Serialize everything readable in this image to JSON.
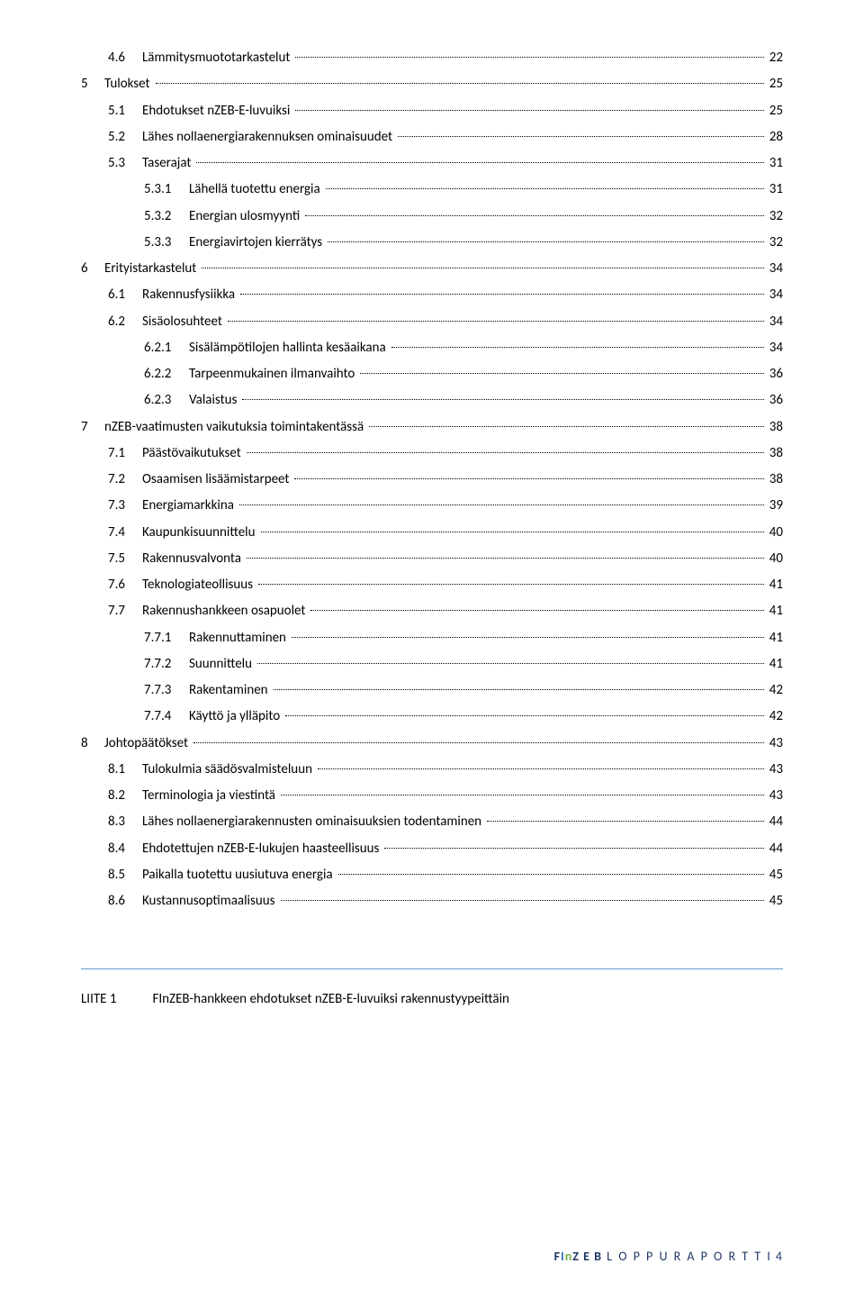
{
  "toc": [
    {
      "lvl": 2,
      "num": "4.6",
      "title": "Lämmitysmuototarkastelut",
      "page": "22"
    },
    {
      "lvl": 1,
      "num": "5",
      "title": "Tulokset",
      "page": "25"
    },
    {
      "lvl": 2,
      "num": "5.1",
      "title": "Ehdotukset nZEB-E-luvuiksi",
      "page": "25"
    },
    {
      "lvl": 2,
      "num": "5.2",
      "title": "Lähes nollaenergiarakennuksen ominaisuudet",
      "page": "28"
    },
    {
      "lvl": 2,
      "num": "5.3",
      "title": "Taserajat",
      "page": "31"
    },
    {
      "lvl": 3,
      "num": "5.3.1",
      "title": "Lähellä tuotettu energia",
      "page": "31"
    },
    {
      "lvl": 3,
      "num": "5.3.2",
      "title": "Energian ulosmyynti",
      "page": "32"
    },
    {
      "lvl": 3,
      "num": "5.3.3",
      "title": "Energiavirtojen kierrätys",
      "page": "32"
    },
    {
      "lvl": 1,
      "num": "6",
      "title": "Erityistarkastelut",
      "page": "34"
    },
    {
      "lvl": 2,
      "num": "6.1",
      "title": "Rakennusfysiikka",
      "page": "34"
    },
    {
      "lvl": 2,
      "num": "6.2",
      "title": "Sisäolosuhteet",
      "page": "34"
    },
    {
      "lvl": 3,
      "num": "6.2.1",
      "title": "Sisälämpötilojen hallinta kesäaikana",
      "page": "34"
    },
    {
      "lvl": 3,
      "num": "6.2.2",
      "title": "Tarpeenmukainen ilmanvaihto",
      "page": "36"
    },
    {
      "lvl": 3,
      "num": "6.2.3",
      "title": "Valaistus",
      "page": "36"
    },
    {
      "lvl": 1,
      "num": "7",
      "title": "nZEB-vaatimusten vaikutuksia toimintakentässä",
      "page": "38"
    },
    {
      "lvl": 2,
      "num": "7.1",
      "title": "Päästövaikutukset",
      "page": "38"
    },
    {
      "lvl": 2,
      "num": "7.2",
      "title": "Osaamisen lisäämistarpeet",
      "page": "38"
    },
    {
      "lvl": 2,
      "num": "7.3",
      "title": "Energiamarkkina",
      "page": "39"
    },
    {
      "lvl": 2,
      "num": "7.4",
      "title": "Kaupunkisuunnittelu",
      "page": "40"
    },
    {
      "lvl": 2,
      "num": "7.5",
      "title": "Rakennusvalvonta",
      "page": "40"
    },
    {
      "lvl": 2,
      "num": "7.6",
      "title": "Teknologiateollisuus",
      "page": "41"
    },
    {
      "lvl": 2,
      "num": "7.7",
      "title": "Rakennushankkeen osapuolet",
      "page": "41"
    },
    {
      "lvl": 3,
      "num": "7.7.1",
      "title": "Rakennuttaminen",
      "page": "41"
    },
    {
      "lvl": 3,
      "num": "7.7.2",
      "title": "Suunnittelu",
      "page": "41"
    },
    {
      "lvl": 3,
      "num": "7.7.3",
      "title": "Rakentaminen",
      "page": "42"
    },
    {
      "lvl": 3,
      "num": "7.7.4",
      "title": "Käyttö ja ylläpito",
      "page": "42"
    },
    {
      "lvl": 1,
      "num": "8",
      "title": "Johtopäätökset",
      "page": "43"
    },
    {
      "lvl": 2,
      "num": "8.1",
      "title": "Tulokulmia säädösvalmisteluun",
      "page": "43"
    },
    {
      "lvl": 2,
      "num": "8.2",
      "title": "Terminologia ja viestintä",
      "page": "43"
    },
    {
      "lvl": 2,
      "num": "8.3",
      "title": "Lähes nollaenergiarakennusten ominaisuuksien todentaminen",
      "page": "44"
    },
    {
      "lvl": 2,
      "num": "8.4",
      "title": "Ehdotettujen nZEB-E-lukujen haasteellisuus",
      "page": "44"
    },
    {
      "lvl": 2,
      "num": "8.5",
      "title": "Paikalla tuotettu uusiutuva energia",
      "page": "45"
    },
    {
      "lvl": 2,
      "num": "8.6",
      "title": "Kustannusoptimaalisuus",
      "page": "45"
    }
  ],
  "appendix": {
    "label": "LIITE 1",
    "text": "FInZEB-hankkeen ehdotukset nZEB-E-luvuiksi rakennustyypeittäin"
  },
  "footer": {
    "brand_F": "F",
    "brand_I": "I",
    "brand_n": "n",
    "brand_ZEB": "Z E B",
    "rest": " L O P P U R A P O R T T I",
    "page": " 4"
  },
  "colors": {
    "text": "#000000",
    "rule": "#5b9bd5",
    "brand_dark": "#1f3864",
    "brand_mid": "#2e75b6",
    "brand_green": "#70ad47",
    "background": "#ffffff"
  }
}
